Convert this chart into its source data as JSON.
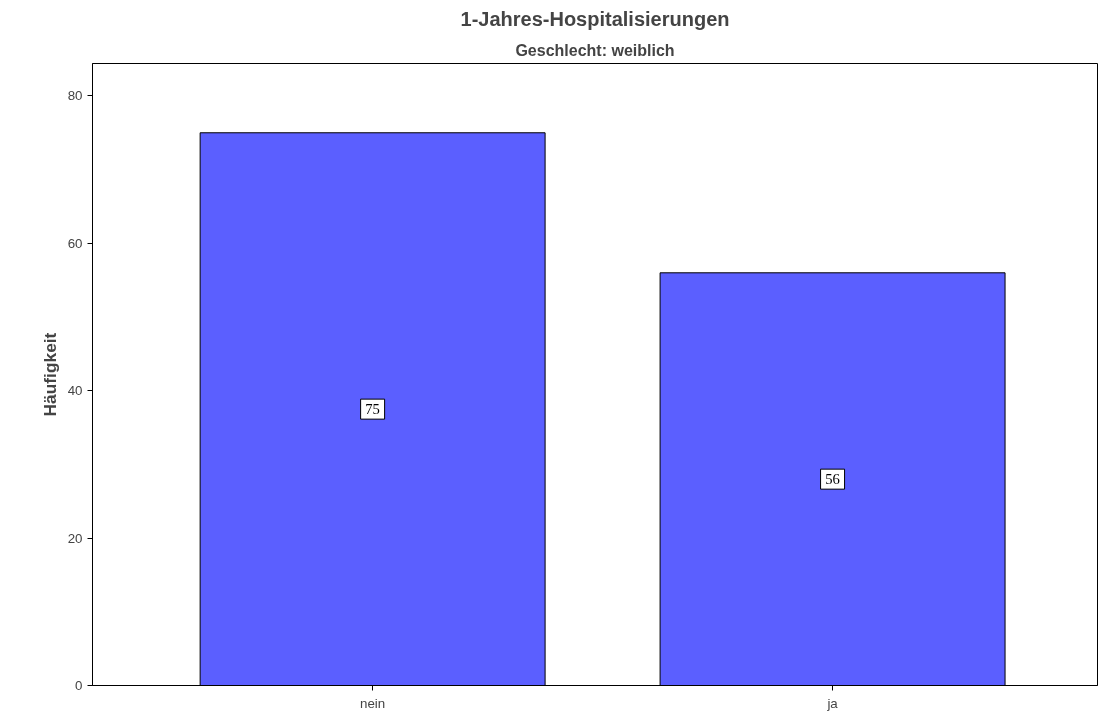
{
  "chart_data": {
    "type": "bar",
    "title": "1-Jahres-Hospitalisierungen",
    "subtitle": "Geschlecht: weiblich",
    "ylabel": "Häufigkeit",
    "categories": [
      "nein",
      "ja"
    ],
    "values": [
      75,
      56
    ],
    "color": "#5b5fff",
    "ylim": [
      0,
      84.4
    ],
    "yticks": [
      0,
      20,
      40,
      60,
      80
    ],
    "data_labels": true,
    "grid": false
  }
}
